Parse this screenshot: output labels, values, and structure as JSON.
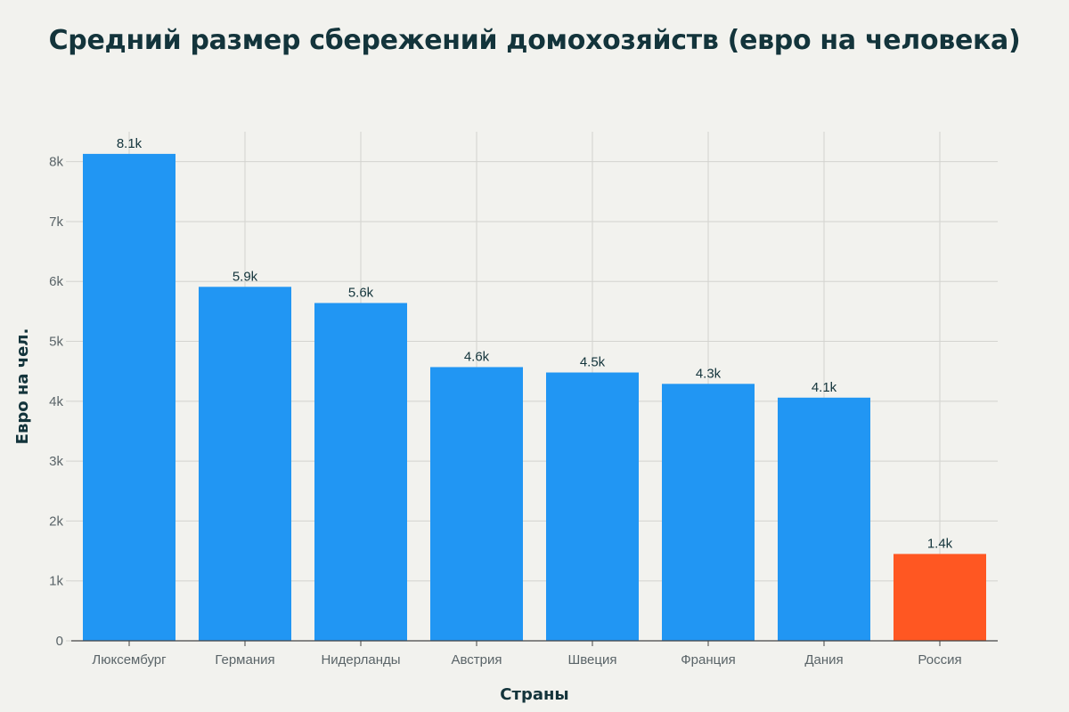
{
  "chart_data": {
    "type": "bar",
    "title": "Средний размер сбережений домохозяйств (евро на человека)",
    "xlabel": "Страны",
    "ylabel": "Евро на чел.",
    "categories": [
      "Люксембург",
      "Германия",
      "Нидерланды",
      "Австрия",
      "Швеция",
      "Франция",
      "Дания",
      "Россия"
    ],
    "values": [
      8130,
      5910,
      5640,
      4570,
      4480,
      4290,
      4060,
      1450
    ],
    "data_labels": [
      "8.1k",
      "5.9k",
      "5.6k",
      "4.6k",
      "4.5k",
      "4.3k",
      "4.1k",
      "1.4k"
    ],
    "bar_colors": [
      "#2196f3",
      "#2196f3",
      "#2196f3",
      "#2196f3",
      "#2196f3",
      "#2196f3",
      "#2196f3",
      "#ff5722"
    ],
    "ylim": [
      0,
      8500
    ],
    "yticks": [
      0,
      1000,
      2000,
      3000,
      4000,
      5000,
      6000,
      7000,
      8000
    ],
    "ytick_labels": [
      "0",
      "1k",
      "2k",
      "3k",
      "4k",
      "5k",
      "6k",
      "7k",
      "8k"
    ],
    "grid": true,
    "colors": {
      "background": "#f2f2ee",
      "grid": "#d3d3cf",
      "axis": "#444444",
      "text": "#13343b"
    }
  }
}
